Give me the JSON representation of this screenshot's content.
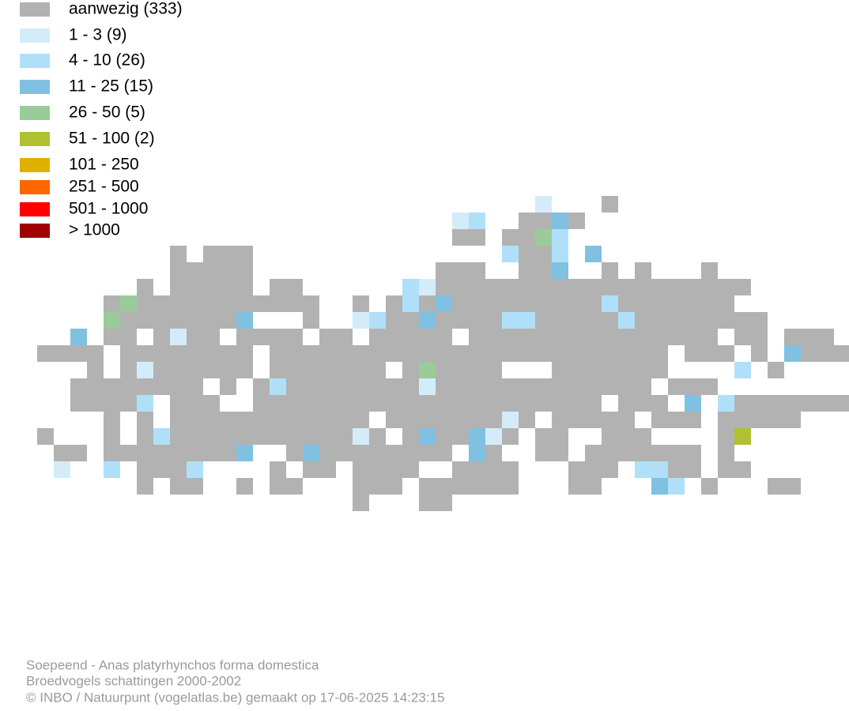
{
  "legend": [
    {
      "label": "aanwezig (333)",
      "color": "#b2b2b2"
    },
    {
      "label": "1 - 3 (9)",
      "color": "#d4ecfa"
    },
    {
      "label": "4 - 10 (26)",
      "color": "#b0e0f9"
    },
    {
      "label": "11 - 25 (15)",
      "color": "#80c0e0"
    },
    {
      "label": "26 - 50 (5)",
      "color": "#99cc99"
    },
    {
      "label": "51 - 100 (2)",
      "color": "#b0c032"
    },
    {
      "label": "101 - 250",
      "color": "#e0b000"
    },
    {
      "label": "251 - 500",
      "color": "#ff6600"
    },
    {
      "label": "501 - 1000",
      "color": "#ff0000"
    },
    {
      "label": "> 1000",
      "color": "#a00000"
    }
  ],
  "footer": [
    "Soepeend - Anas platyrhynchos forma domestica",
    "Broedvogels schattingen 2000-2002",
    "© INBO / Natuurpunt (vogelatlas.be) gemaakt op 17-06-2025 14:23:15"
  ]
}
